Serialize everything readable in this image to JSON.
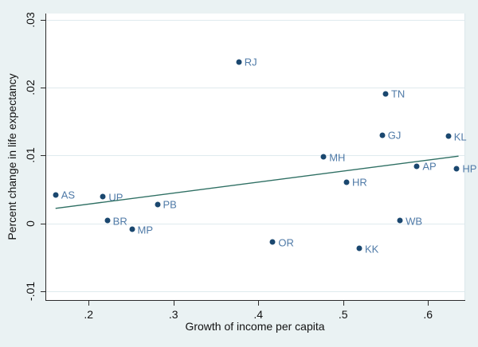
{
  "chart_data": {
    "type": "scatter",
    "title": "",
    "xlabel": "Growth of income per capita",
    "ylabel": "Percent change in life expectancy",
    "xlim": [
      0.15,
      0.643
    ],
    "ylim": [
      -0.0113,
      0.0309
    ],
    "grid": true,
    "legend": "none",
    "x_ticks": [
      {
        "value": 0.2,
        "label": ".2"
      },
      {
        "value": 0.3,
        "label": ".3"
      },
      {
        "value": 0.4,
        "label": ".4"
      },
      {
        "value": 0.5,
        "label": ".5"
      },
      {
        "value": 0.6,
        "label": ".6"
      }
    ],
    "y_ticks": [
      {
        "value": -0.01,
        "label": "-.01"
      },
      {
        "value": 0,
        "label": "0"
      },
      {
        "value": 0.01,
        "label": ".01"
      },
      {
        "value": 0.02,
        "label": ".02"
      },
      {
        "value": 0.03,
        "label": ".03"
      }
    ],
    "points": [
      {
        "label": "AS",
        "x": 0.161,
        "y": 0.0042
      },
      {
        "label": "UP",
        "x": 0.217,
        "y": 0.0039
      },
      {
        "label": "BR",
        "x": 0.222,
        "y": 0.0004
      },
      {
        "label": "MP",
        "x": 0.251,
        "y": -0.0009
      },
      {
        "label": "PB",
        "x": 0.281,
        "y": 0.0028
      },
      {
        "label": "RJ",
        "x": 0.377,
        "y": 0.0238
      },
      {
        "label": "OR",
        "x": 0.417,
        "y": -0.0028
      },
      {
        "label": "MH",
        "x": 0.477,
        "y": 0.0098
      },
      {
        "label": "HR",
        "x": 0.504,
        "y": 0.0061
      },
      {
        "label": "KK",
        "x": 0.519,
        "y": -0.0037
      },
      {
        "label": "GJ",
        "x": 0.546,
        "y": 0.013
      },
      {
        "label": "TN",
        "x": 0.55,
        "y": 0.0191
      },
      {
        "label": "WB",
        "x": 0.567,
        "y": 0.0004
      },
      {
        "label": "AP",
        "x": 0.587,
        "y": 0.0084
      },
      {
        "label": "KL",
        "x": 0.624,
        "y": 0.0128
      },
      {
        "label": "HP",
        "x": 0.634,
        "y": 0.0081
      }
    ],
    "trend_line": {
      "x1": 0.161,
      "y1": 0.0022,
      "x2": 0.636,
      "y2": 0.0099
    },
    "colors": {
      "background": "#eaf2f3",
      "plot_background": "#ffffff",
      "gridline": "#dfeaee",
      "axis": "#2b2b2b",
      "marker": "#1a476f",
      "marker_label": "#4f7aa7",
      "trend_line": "#2e6f63"
    }
  }
}
